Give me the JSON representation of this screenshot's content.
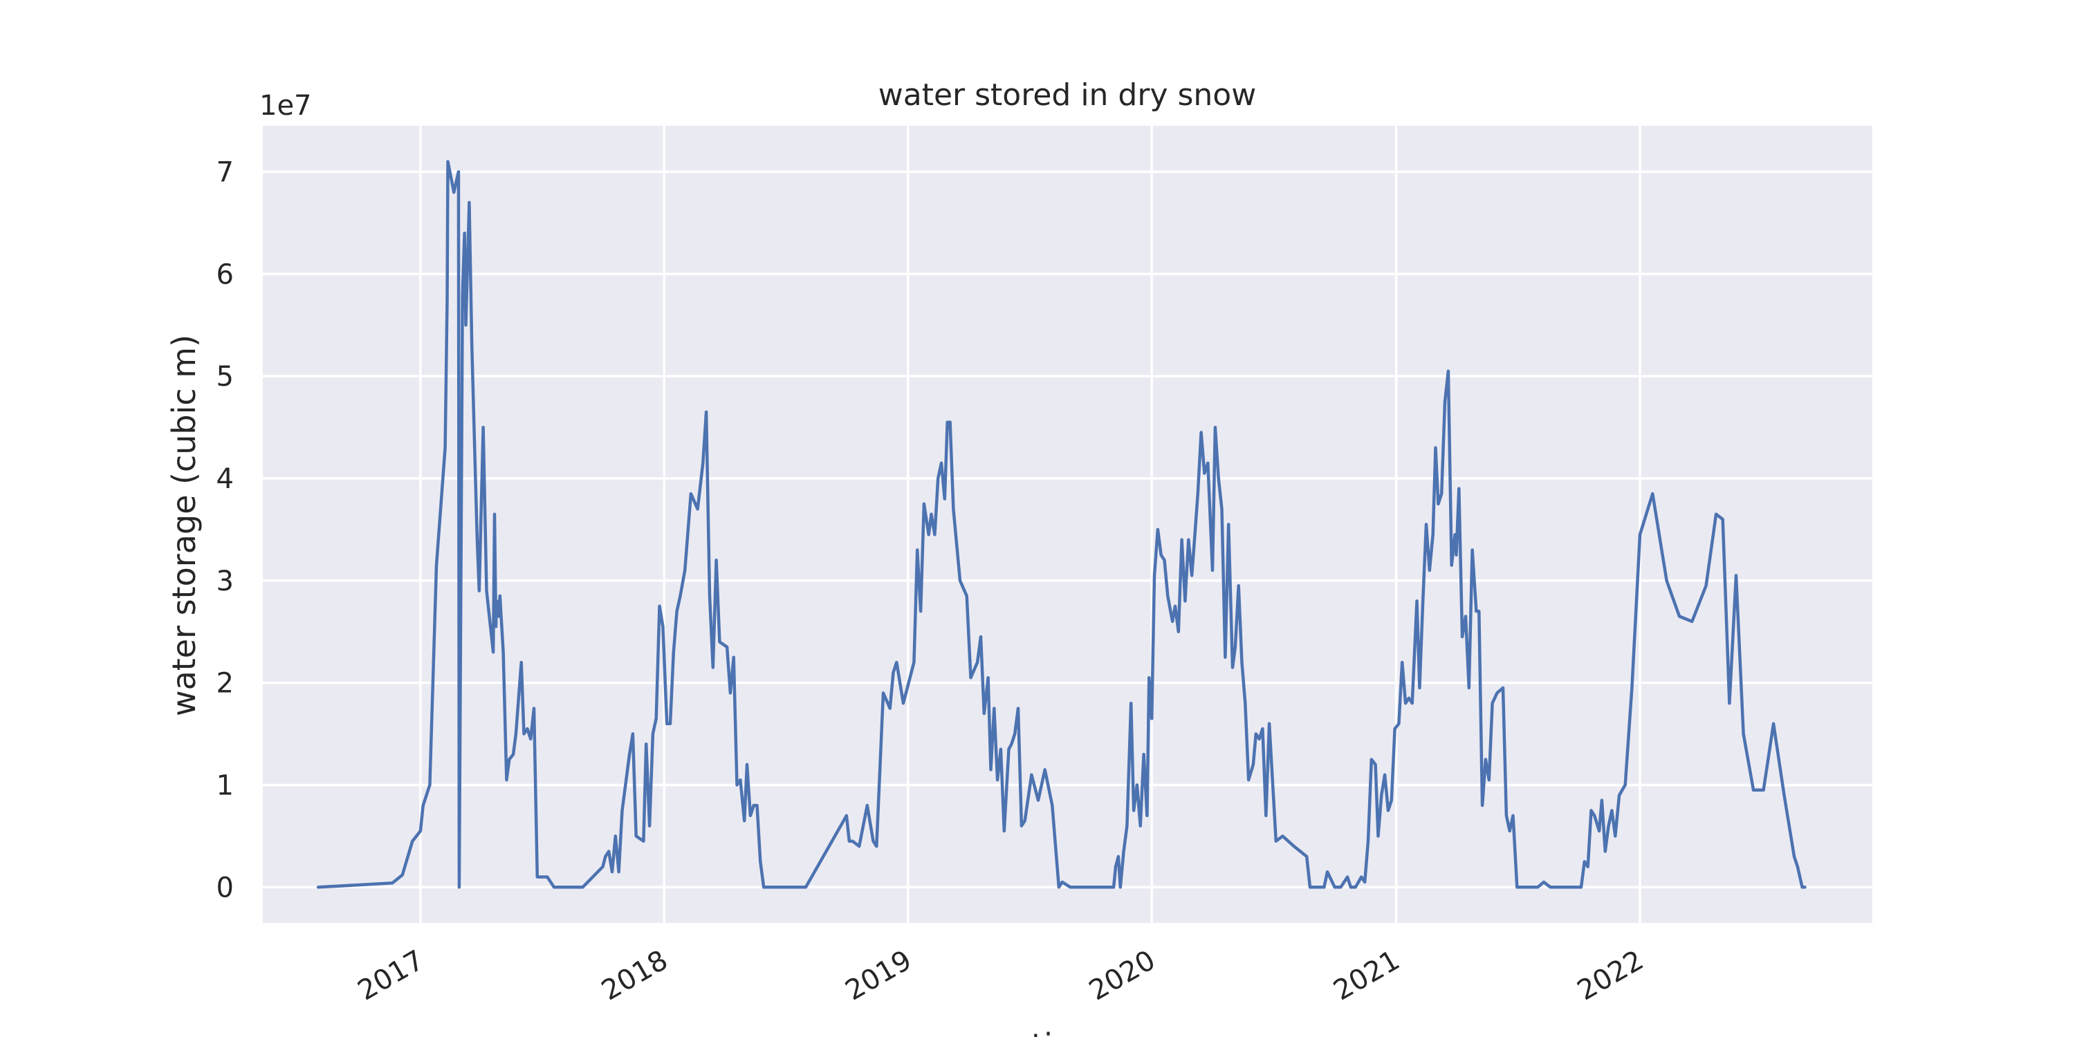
{
  "chart_data": {
    "type": "line",
    "title": "water stored in dry snow",
    "xlabel": "time",
    "ylabel": "water storage (cubic m)",
    "y_offset_label": "1e7",
    "y_scale": 10000000,
    "grid": true,
    "legend": "none",
    "colors": {
      "background": "#eaeaf2",
      "grid": "#ffffff",
      "line": "#4c72b0",
      "text": "#262626"
    },
    "x_ticks": [
      "2017",
      "2018",
      "2019",
      "2020",
      "2021",
      "2022"
    ],
    "y_ticks": [
      "0",
      "1",
      "2",
      "3",
      "4",
      "5",
      "6",
      "7"
    ],
    "xlim": [
      "2016-05-10",
      "2022-12-15"
    ],
    "ylim": [
      -0.35,
      7.45
    ],
    "series": [
      {
        "name": "",
        "x": [
          "2016-08-01",
          "2016-11-20",
          "2016-12-05",
          "2016-12-20",
          "2017-01-01",
          "2017-01-05",
          "2017-01-15",
          "2017-01-25",
          "2017-02-07",
          "2017-02-10",
          "2017-02-11",
          "2017-02-20",
          "2017-02-27",
          "2017-02-28",
          "2017-03-05",
          "2017-03-08",
          "2017-03-10",
          "2017-03-15",
          "2017-03-19",
          "2017-03-24",
          "2017-03-27",
          "2017-03-30",
          "2017-04-05",
          "2017-04-10",
          "2017-04-20",
          "2017-04-22",
          "2017-04-24",
          "2017-04-25",
          "2017-04-28",
          "2017-04-30",
          "2017-05-05",
          "2017-05-10",
          "2017-05-14",
          "2017-05-20",
          "2017-05-24",
          "2017-06-01",
          "2017-06-05",
          "2017-06-10",
          "2017-06-15",
          "2017-06-20",
          "2017-06-25",
          "2017-07-10",
          "2017-07-20",
          "2017-08-10",
          "2017-09-01",
          "2017-10-01",
          "2017-10-05",
          "2017-10-10",
          "2017-10-15",
          "2017-10-20",
          "2017-10-25",
          "2017-10-30",
          "2017-11-05",
          "2017-11-10",
          "2017-11-15",
          "2017-11-20",
          "2017-12-01",
          "2017-12-05",
          "2017-12-10",
          "2017-12-15",
          "2017-12-20",
          "2017-12-25",
          "2017-12-30",
          "2018-01-05",
          "2018-01-10",
          "2018-01-15",
          "2018-01-20",
          "2018-01-25",
          "2018-02-01",
          "2018-02-10",
          "2018-02-20",
          "2018-02-28",
          "2018-03-05",
          "2018-03-10",
          "2018-03-15",
          "2018-03-20",
          "2018-03-25",
          "2018-04-05",
          "2018-04-10",
          "2018-04-15",
          "2018-04-20",
          "2018-04-25",
          "2018-05-01",
          "2018-05-05",
          "2018-05-10",
          "2018-05-15",
          "2018-05-20",
          "2018-05-25",
          "2018-05-30",
          "2018-06-05",
          "2018-06-10",
          "2018-06-20",
          "2018-07-10",
          "2018-08-01",
          "2018-10-01",
          "2018-10-05",
          "2018-10-10",
          "2018-10-20",
          "2018-11-01",
          "2018-11-10",
          "2018-11-15",
          "2018-11-25",
          "2018-12-05",
          "2018-12-10",
          "2018-12-15",
          "2018-12-25",
          "2019-01-10",
          "2019-01-15",
          "2019-01-20",
          "2019-01-25",
          "2019-02-01",
          "2019-02-05",
          "2019-02-10",
          "2019-02-15",
          "2019-02-20",
          "2019-02-25",
          "2019-03-01",
          "2019-03-05",
          "2019-03-10",
          "2019-03-20",
          "2019-03-30",
          "2019-04-05",
          "2019-04-15",
          "2019-04-20",
          "2019-04-25",
          "2019-05-01",
          "2019-05-05",
          "2019-05-10",
          "2019-05-15",
          "2019-05-20",
          "2019-05-25",
          "2019-06-01",
          "2019-06-05",
          "2019-06-10",
          "2019-06-15",
          "2019-06-20",
          "2019-06-25",
          "2019-07-05",
          "2019-07-15",
          "2019-07-25",
          "2019-08-05",
          "2019-08-15",
          "2019-08-20",
          "2019-09-01",
          "2019-09-15",
          "2019-10-01",
          "2019-10-10",
          "2019-10-20",
          "2019-11-01",
          "2019-11-05",
          "2019-11-08",
          "2019-11-12",
          "2019-11-15",
          "2019-11-20",
          "2019-11-25",
          "2019-12-01",
          "2019-12-05",
          "2019-12-10",
          "2019-12-15",
          "2019-12-20",
          "2019-12-25",
          "2019-12-28",
          "2020-01-01",
          "2020-01-05",
          "2020-01-10",
          "2020-01-15",
          "2020-01-20",
          "2020-01-25",
          "2020-02-01",
          "2020-02-05",
          "2020-02-10",
          "2020-02-15",
          "2020-02-20",
          "2020-02-25",
          "2020-03-01",
          "2020-03-05",
          "2020-03-10",
          "2020-03-15",
          "2020-03-20",
          "2020-03-25",
          "2020-04-01",
          "2020-04-05",
          "2020-04-10",
          "2020-04-15",
          "2020-04-20",
          "2020-04-25",
          "2020-05-01",
          "2020-05-05",
          "2020-05-10",
          "2020-05-15",
          "2020-05-20",
          "2020-05-25",
          "2020-06-01",
          "2020-06-05",
          "2020-06-10",
          "2020-06-15",
          "2020-06-20",
          "2020-06-25",
          "2020-07-05",
          "2020-07-15",
          "2020-08-01",
          "2020-08-20",
          "2020-08-25",
          "2020-09-01",
          "2020-09-15",
          "2020-09-20",
          "2020-10-01",
          "2020-10-05",
          "2020-10-10",
          "2020-10-20",
          "2020-10-25",
          "2020-11-01",
          "2020-11-10",
          "2020-11-15",
          "2020-11-20",
          "2020-11-25",
          "2020-12-01",
          "2020-12-05",
          "2020-12-10",
          "2020-12-15",
          "2020-12-20",
          "2020-12-25",
          "2020-12-30",
          "2021-01-05",
          "2021-01-10",
          "2021-01-15",
          "2021-01-20",
          "2021-01-25",
          "2021-02-01",
          "2021-02-05",
          "2021-02-10",
          "2021-02-15",
          "2021-02-20",
          "2021-02-25",
          "2021-03-01",
          "2021-03-05",
          "2021-03-10",
          "2021-03-15",
          "2021-03-20",
          "2021-03-25",
          "2021-03-30",
          "2021-04-01",
          "2021-04-05",
          "2021-04-10",
          "2021-04-15",
          "2021-04-20",
          "2021-04-25",
          "2021-05-01",
          "2021-05-05",
          "2021-05-10",
          "2021-05-15",
          "2021-05-20",
          "2021-05-25",
          "2021-06-01",
          "2021-06-10",
          "2021-06-15",
          "2021-06-20",
          "2021-06-25",
          "2021-07-01",
          "2021-07-15",
          "2021-08-01",
          "2021-08-10",
          "2021-08-20",
          "2021-09-01",
          "2021-10-01",
          "2021-10-05",
          "2021-10-10",
          "2021-10-15",
          "2021-10-20",
          "2021-10-25",
          "2021-11-01",
          "2021-11-05",
          "2021-11-10",
          "2021-11-15",
          "2021-11-20",
          "2021-11-25",
          "2021-12-01",
          "2021-12-10",
          "2021-12-20",
          "2022-01-01",
          "2022-01-20",
          "2022-02-10",
          "2022-03-01",
          "2022-03-20",
          "2022-04-10",
          "2022-04-25",
          "2022-05-05",
          "2022-05-15",
          "2022-05-25",
          "2022-06-05",
          "2022-06-20",
          "2022-07-05",
          "2022-07-20",
          "2022-08-05",
          "2022-08-20",
          "2022-08-25",
          "2022-09-01",
          "2022-09-05"
        ],
        "values": [
          0.0,
          0.04,
          0.12,
          0.45,
          0.55,
          0.8,
          1.0,
          3.15,
          4.3,
          5.75,
          7.1,
          6.8,
          7.0,
          0.0,
          5.8,
          6.4,
          5.5,
          6.7,
          5.3,
          4.1,
          3.4,
          2.9,
          4.5,
          2.9,
          2.3,
          3.65,
          2.55,
          2.8,
          2.65,
          2.85,
          2.3,
          1.05,
          1.25,
          1.3,
          1.5,
          2.2,
          1.5,
          1.55,
          1.45,
          1.75,
          0.1,
          0.1,
          0.0,
          0.0,
          0.0,
          0.2,
          0.3,
          0.35,
          0.15,
          0.5,
          0.15,
          0.75,
          1.05,
          1.3,
          1.5,
          0.5,
          0.45,
          1.4,
          0.6,
          1.5,
          1.65,
          2.75,
          2.55,
          1.6,
          1.6,
          2.3,
          2.7,
          2.85,
          3.1,
          3.85,
          3.7,
          4.15,
          4.65,
          2.85,
          2.15,
          3.2,
          2.4,
          2.35,
          1.9,
          2.25,
          1.0,
          1.05,
          0.65,
          1.2,
          0.7,
          0.8,
          0.8,
          0.25,
          0.0,
          0.0,
          0.0,
          0.0,
          0.0,
          0.0,
          0.7,
          0.45,
          0.45,
          0.4,
          0.8,
          0.45,
          0.4,
          1.9,
          1.75,
          2.1,
          2.2,
          1.8,
          2.2,
          3.3,
          2.7,
          3.75,
          3.45,
          3.65,
          3.45,
          4.0,
          4.15,
          3.8,
          4.55,
          4.55,
          3.7,
          3.0,
          2.85,
          2.05,
          2.2,
          2.45,
          1.7,
          2.05,
          1.15,
          1.75,
          1.05,
          1.35,
          0.55,
          1.35,
          1.4,
          1.5,
          1.75,
          0.6,
          0.65,
          1.1,
          0.85,
          1.15,
          0.8,
          0.0,
          0.05,
          0.0,
          0.0,
          0.0,
          0.0,
          0.0,
          0.0,
          0.0,
          0.2,
          0.3,
          0.0,
          0.35,
          0.6,
          1.8,
          0.75,
          1.0,
          0.6,
          1.3,
          0.7,
          2.05,
          1.65,
          3.05,
          3.5,
          3.25,
          3.2,
          2.85,
          2.6,
          2.75,
          2.5,
          3.4,
          2.8,
          3.4,
          3.05,
          3.4,
          3.85,
          4.45,
          4.05,
          4.15,
          3.1,
          4.5,
          4.0,
          3.7,
          2.25,
          3.55,
          2.15,
          2.35,
          2.95,
          2.2,
          1.8,
          1.05,
          1.2,
          1.5,
          1.45,
          1.55,
          0.7,
          1.6,
          0.45,
          0.5,
          0.4,
          0.3,
          0.0,
          0.0,
          0.0,
          0.15,
          0.0,
          0.0,
          0.0,
          0.1,
          0.0,
          0.0,
          0.1,
          0.05,
          0.45,
          1.25,
          1.2,
          0.5,
          0.9,
          1.1,
          0.75,
          0.85,
          1.55,
          1.6,
          2.2,
          1.8,
          1.85,
          1.8,
          2.8,
          1.95,
          2.8,
          3.55,
          3.1,
          3.45,
          4.3,
          3.75,
          3.85,
          4.75,
          5.05,
          3.15,
          3.45,
          3.25,
          3.9,
          2.45,
          2.65,
          1.95,
          3.3,
          2.7,
          2.7,
          0.8,
          1.25,
          1.05,
          1.8,
          1.9,
          1.95,
          0.7,
          0.55,
          0.7,
          0.0,
          0.0,
          0.0,
          0.05,
          0.0,
          0.0,
          0.0,
          0.0,
          0.25,
          0.2,
          0.75,
          0.7,
          0.55,
          0.85,
          0.35,
          0.6,
          0.75,
          0.5,
          0.9,
          1.0,
          1.95,
          3.45,
          3.85,
          3.0,
          2.65,
          2.6,
          2.95,
          3.65,
          3.6,
          1.8,
          3.05,
          1.5,
          0.95,
          0.95,
          1.6,
          0.9,
          0.3,
          0.2,
          0.0,
          0.0
        ]
      }
    ]
  }
}
